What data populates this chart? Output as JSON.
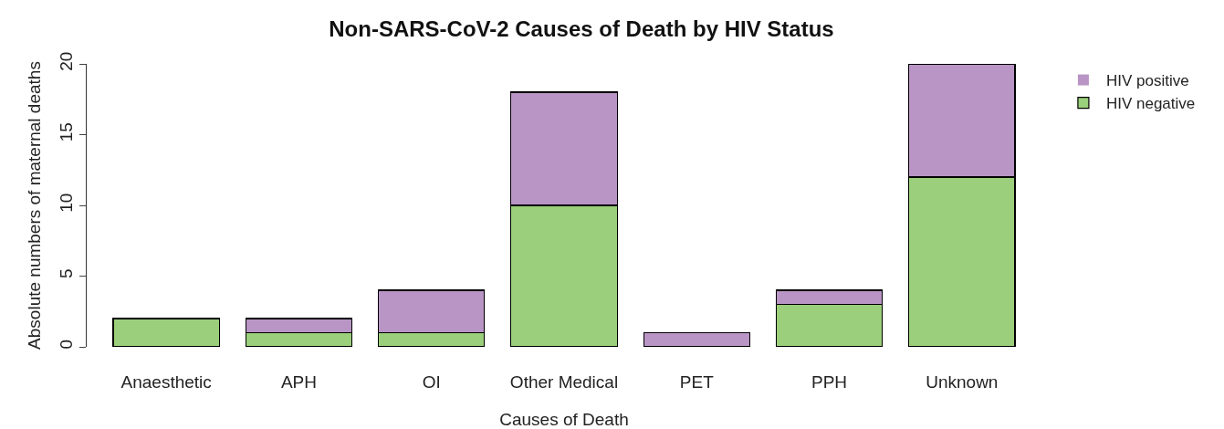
{
  "chart_data": {
    "type": "bar",
    "title": "Non-SARS-CoV-2 Causes of Death by HIV Status",
    "xlabel": "Causes of Death",
    "ylabel": "Absolute numbers of maternal deaths",
    "categories": [
      "Anaesthetic",
      "APH",
      "OI",
      "Other Medical",
      "PET",
      "PPH",
      "Unknown"
    ],
    "series": [
      {
        "name": "HIV negative",
        "color": "#9bcf7b",
        "values": [
          2,
          1,
          1,
          10,
          0,
          3,
          12
        ]
      },
      {
        "name": "HIV positive",
        "color": "#b995c5",
        "values": [
          0,
          1,
          3,
          8,
          1,
          1,
          8
        ]
      }
    ],
    "stacked": true,
    "ylim": [
      0,
      20
    ],
    "yticks": [
      0,
      5,
      10,
      15,
      20
    ],
    "grid": false,
    "legend": "top right"
  }
}
